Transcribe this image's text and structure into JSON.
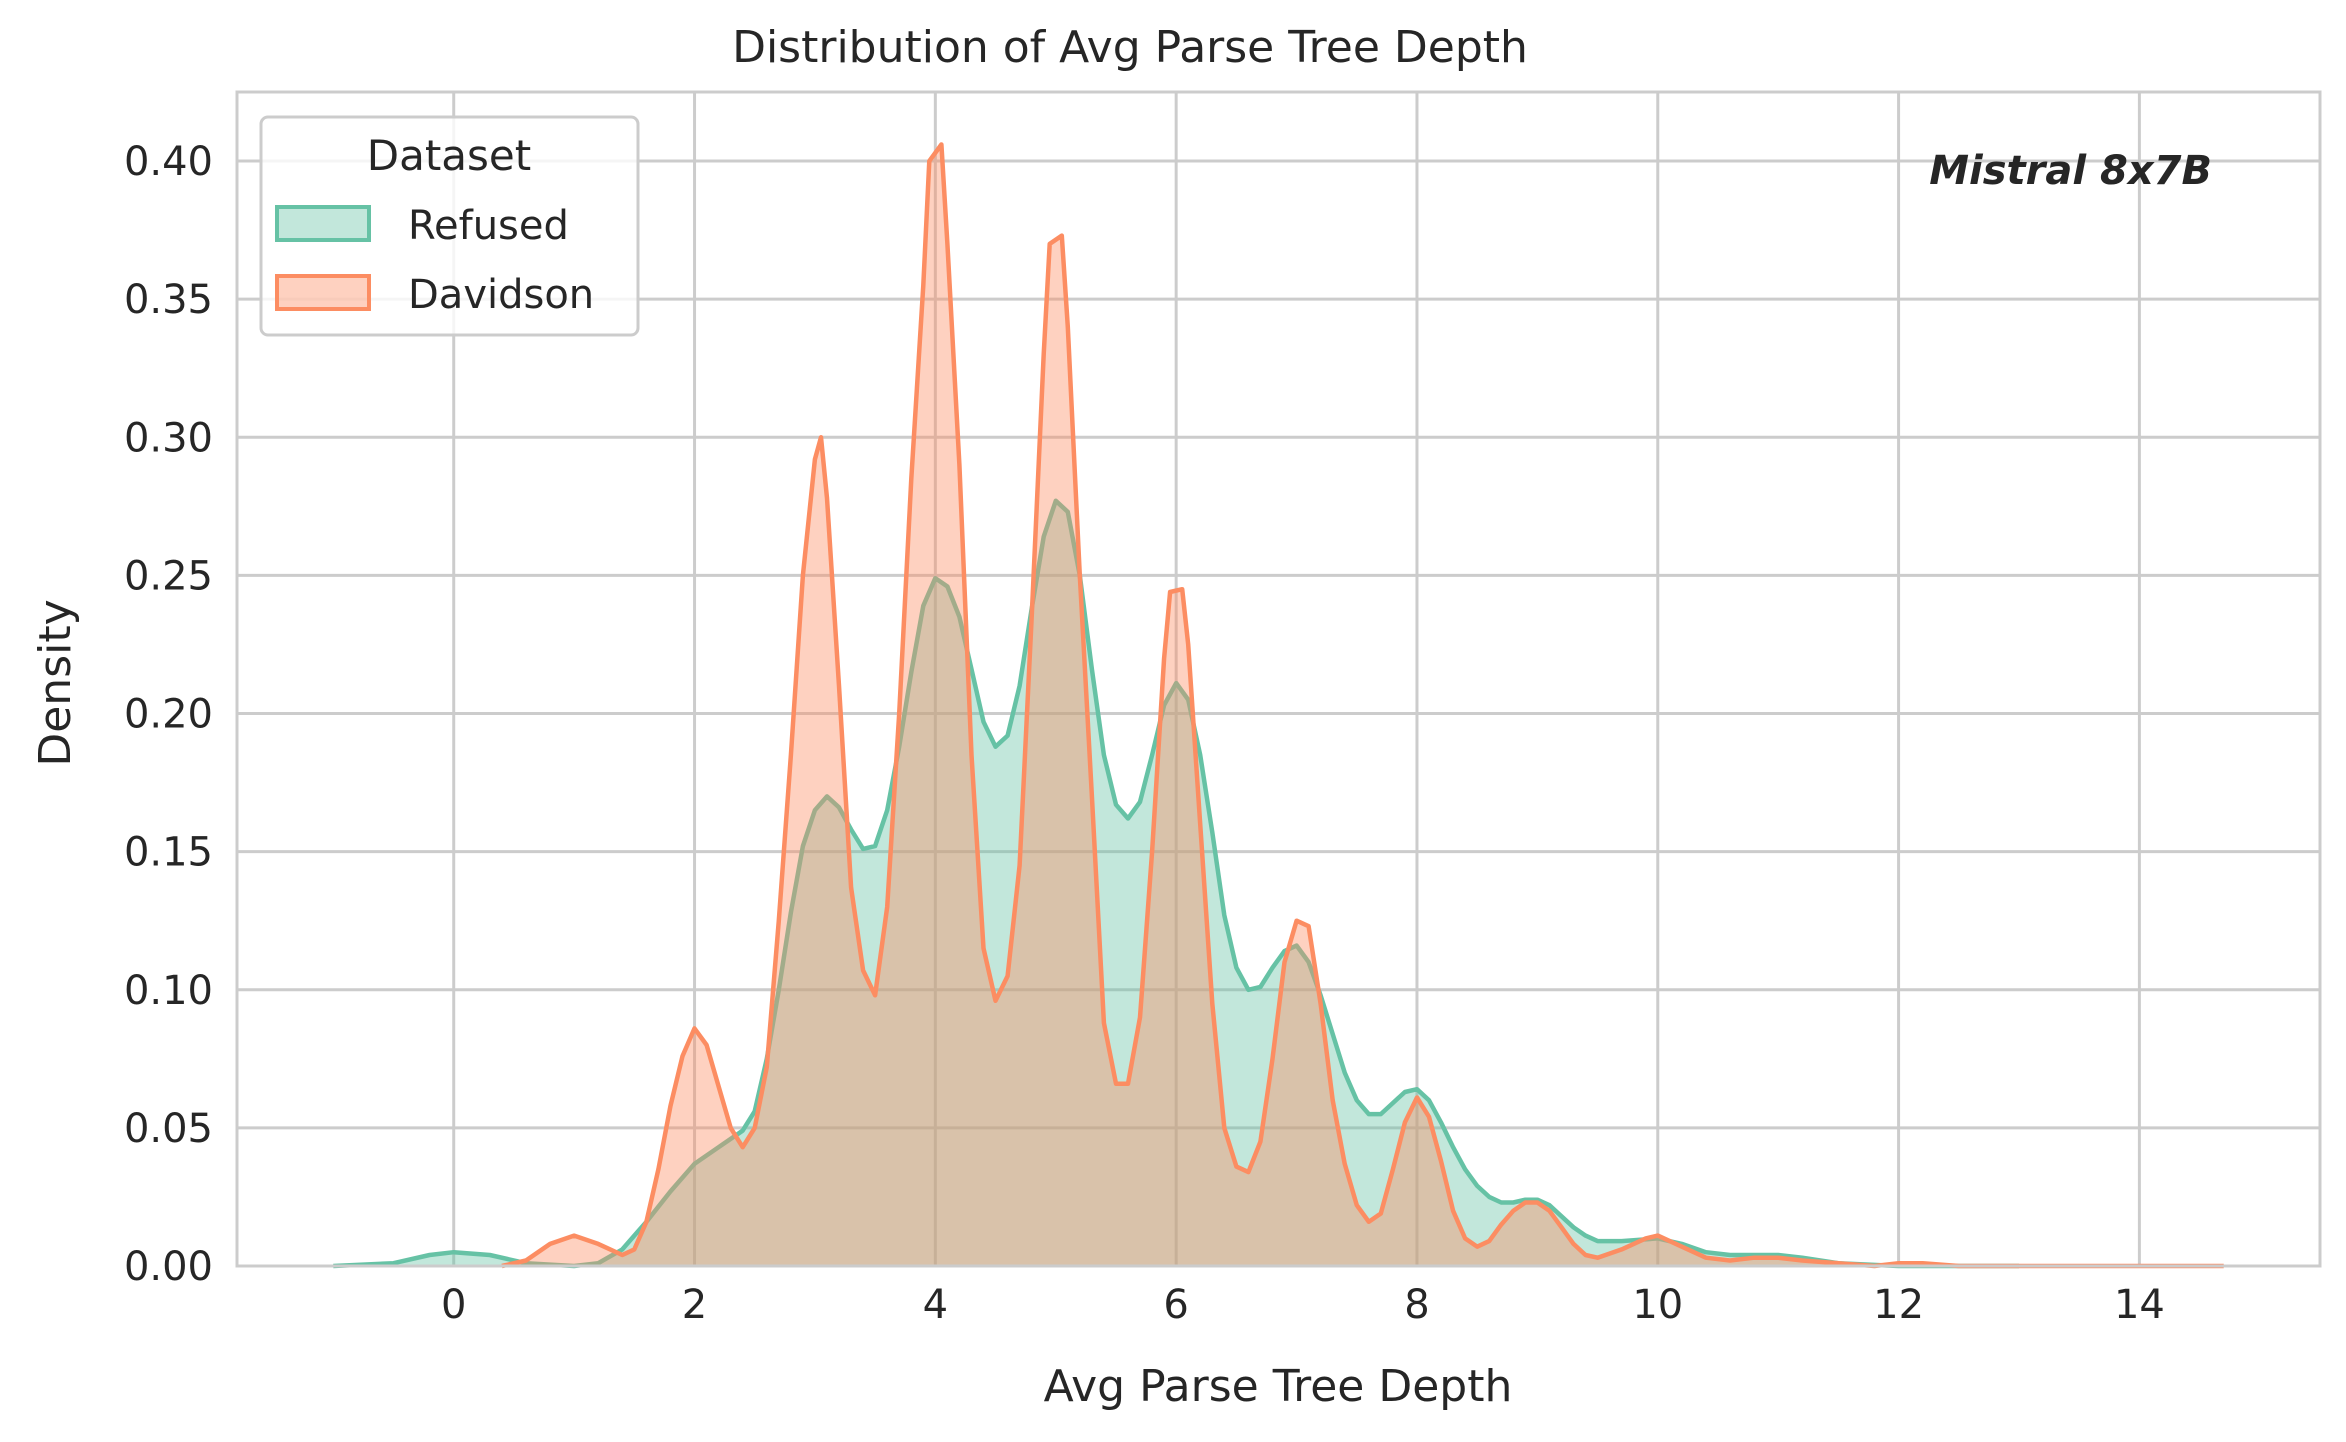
{
  "chart_data": {
    "type": "area",
    "title": "Distribution of Avg Parse Tree Depth",
    "xlabel": "Avg Parse Tree Depth",
    "ylabel": "Density",
    "xlim": [
      -1.8,
      15.5
    ],
    "ylim": [
      0,
      0.425
    ],
    "x_ticks": [
      0,
      2,
      4,
      6,
      8,
      10,
      12,
      14
    ],
    "y_ticks": [
      0.0,
      0.05,
      0.1,
      0.15,
      0.2,
      0.25,
      0.3,
      0.35,
      0.4
    ],
    "x_tick_labels": [
      "0",
      "2",
      "4",
      "6",
      "8",
      "10",
      "12",
      "14"
    ],
    "y_tick_labels": [
      "0.00",
      "0.05",
      "0.10",
      "0.15",
      "0.20",
      "0.25",
      "0.30",
      "0.35",
      "0.40"
    ],
    "grid": true,
    "legend": {
      "title": "Dataset",
      "placement": "top-left"
    },
    "annotation": "Mistral 8x7B",
    "series": [
      {
        "name": "Refused",
        "color": "#66c2a5",
        "points": [
          [
            -1.0,
            0.0
          ],
          [
            -0.5,
            0.001
          ],
          [
            -0.2,
            0.004
          ],
          [
            0.0,
            0.005
          ],
          [
            0.3,
            0.004
          ],
          [
            0.6,
            0.001
          ],
          [
            1.0,
            0.0
          ],
          [
            1.2,
            0.001
          ],
          [
            1.4,
            0.006
          ],
          [
            1.6,
            0.016
          ],
          [
            1.8,
            0.027
          ],
          [
            2.0,
            0.037
          ],
          [
            2.2,
            0.043
          ],
          [
            2.4,
            0.049
          ],
          [
            2.5,
            0.056
          ],
          [
            2.6,
            0.075
          ],
          [
            2.7,
            0.1
          ],
          [
            2.8,
            0.128
          ],
          [
            2.9,
            0.152
          ],
          [
            3.0,
            0.165
          ],
          [
            3.1,
            0.17
          ],
          [
            3.2,
            0.166
          ],
          [
            3.3,
            0.158
          ],
          [
            3.4,
            0.151
          ],
          [
            3.5,
            0.152
          ],
          [
            3.6,
            0.165
          ],
          [
            3.7,
            0.188
          ],
          [
            3.8,
            0.215
          ],
          [
            3.9,
            0.239
          ],
          [
            4.0,
            0.249
          ],
          [
            4.1,
            0.246
          ],
          [
            4.2,
            0.235
          ],
          [
            4.3,
            0.216
          ],
          [
            4.4,
            0.197
          ],
          [
            4.5,
            0.188
          ],
          [
            4.6,
            0.192
          ],
          [
            4.7,
            0.21
          ],
          [
            4.8,
            0.238
          ],
          [
            4.9,
            0.264
          ],
          [
            5.0,
            0.277
          ],
          [
            5.1,
            0.273
          ],
          [
            5.2,
            0.25
          ],
          [
            5.3,
            0.216
          ],
          [
            5.4,
            0.185
          ],
          [
            5.5,
            0.167
          ],
          [
            5.6,
            0.162
          ],
          [
            5.7,
            0.168
          ],
          [
            5.8,
            0.185
          ],
          [
            5.9,
            0.203
          ],
          [
            6.0,
            0.211
          ],
          [
            6.1,
            0.205
          ],
          [
            6.2,
            0.185
          ],
          [
            6.3,
            0.157
          ],
          [
            6.4,
            0.127
          ],
          [
            6.5,
            0.108
          ],
          [
            6.6,
            0.1
          ],
          [
            6.7,
            0.101
          ],
          [
            6.8,
            0.108
          ],
          [
            6.9,
            0.114
          ],
          [
            7.0,
            0.116
          ],
          [
            7.1,
            0.11
          ],
          [
            7.2,
            0.098
          ],
          [
            7.3,
            0.084
          ],
          [
            7.4,
            0.07
          ],
          [
            7.5,
            0.06
          ],
          [
            7.6,
            0.055
          ],
          [
            7.7,
            0.055
          ],
          [
            7.8,
            0.059
          ],
          [
            7.9,
            0.063
          ],
          [
            8.0,
            0.064
          ],
          [
            8.1,
            0.06
          ],
          [
            8.2,
            0.052
          ],
          [
            8.3,
            0.043
          ],
          [
            8.4,
            0.035
          ],
          [
            8.5,
            0.029
          ],
          [
            8.6,
            0.025
          ],
          [
            8.7,
            0.023
          ],
          [
            8.8,
            0.023
          ],
          [
            8.9,
            0.024
          ],
          [
            9.0,
            0.024
          ],
          [
            9.1,
            0.022
          ],
          [
            9.2,
            0.018
          ],
          [
            9.3,
            0.014
          ],
          [
            9.4,
            0.011
          ],
          [
            9.5,
            0.009
          ],
          [
            9.7,
            0.009
          ],
          [
            10.0,
            0.01
          ],
          [
            10.2,
            0.008
          ],
          [
            10.4,
            0.005
          ],
          [
            10.6,
            0.004
          ],
          [
            10.8,
            0.004
          ],
          [
            11.0,
            0.004
          ],
          [
            11.2,
            0.003
          ],
          [
            11.5,
            0.001
          ],
          [
            12.0,
            0.0
          ],
          [
            13.0,
            0.0
          ]
        ]
      },
      {
        "name": "Davidson",
        "color": "#fc8d62",
        "points": [
          [
            0.4,
            0.0
          ],
          [
            0.6,
            0.002
          ],
          [
            0.8,
            0.008
          ],
          [
            1.0,
            0.011
          ],
          [
            1.2,
            0.008
          ],
          [
            1.4,
            0.004
          ],
          [
            1.5,
            0.006
          ],
          [
            1.6,
            0.016
          ],
          [
            1.7,
            0.035
          ],
          [
            1.8,
            0.058
          ],
          [
            1.9,
            0.076
          ],
          [
            2.0,
            0.086
          ],
          [
            2.1,
            0.08
          ],
          [
            2.2,
            0.065
          ],
          [
            2.3,
            0.05
          ],
          [
            2.4,
            0.043
          ],
          [
            2.5,
            0.05
          ],
          [
            2.6,
            0.072
          ],
          [
            2.7,
            0.125
          ],
          [
            2.8,
            0.185
          ],
          [
            2.9,
            0.25
          ],
          [
            3.0,
            0.292
          ],
          [
            3.05,
            0.3
          ],
          [
            3.1,
            0.278
          ],
          [
            3.2,
            0.21
          ],
          [
            3.3,
            0.137
          ],
          [
            3.4,
            0.107
          ],
          [
            3.5,
            0.098
          ],
          [
            3.6,
            0.13
          ],
          [
            3.7,
            0.2
          ],
          [
            3.8,
            0.285
          ],
          [
            3.9,
            0.355
          ],
          [
            3.95,
            0.4
          ],
          [
            4.05,
            0.406
          ],
          [
            4.1,
            0.37
          ],
          [
            4.2,
            0.29
          ],
          [
            4.3,
            0.185
          ],
          [
            4.4,
            0.115
          ],
          [
            4.5,
            0.096
          ],
          [
            4.6,
            0.105
          ],
          [
            4.7,
            0.145
          ],
          [
            4.8,
            0.235
          ],
          [
            4.9,
            0.33
          ],
          [
            4.95,
            0.37
          ],
          [
            5.05,
            0.373
          ],
          [
            5.1,
            0.34
          ],
          [
            5.2,
            0.25
          ],
          [
            5.3,
            0.17
          ],
          [
            5.4,
            0.088
          ],
          [
            5.5,
            0.066
          ],
          [
            5.6,
            0.066
          ],
          [
            5.7,
            0.09
          ],
          [
            5.8,
            0.15
          ],
          [
            5.9,
            0.22
          ],
          [
            5.95,
            0.244
          ],
          [
            6.05,
            0.245
          ],
          [
            6.1,
            0.225
          ],
          [
            6.2,
            0.16
          ],
          [
            6.3,
            0.095
          ],
          [
            6.4,
            0.05
          ],
          [
            6.5,
            0.036
          ],
          [
            6.6,
            0.034
          ],
          [
            6.7,
            0.045
          ],
          [
            6.8,
            0.075
          ],
          [
            6.9,
            0.11
          ],
          [
            7.0,
            0.125
          ],
          [
            7.1,
            0.123
          ],
          [
            7.2,
            0.095
          ],
          [
            7.3,
            0.06
          ],
          [
            7.4,
            0.037
          ],
          [
            7.5,
            0.022
          ],
          [
            7.6,
            0.016
          ],
          [
            7.7,
            0.019
          ],
          [
            7.8,
            0.035
          ],
          [
            7.9,
            0.052
          ],
          [
            8.0,
            0.061
          ],
          [
            8.1,
            0.054
          ],
          [
            8.2,
            0.038
          ],
          [
            8.3,
            0.02
          ],
          [
            8.4,
            0.01
          ],
          [
            8.5,
            0.007
          ],
          [
            8.6,
            0.009
          ],
          [
            8.7,
            0.015
          ],
          [
            8.8,
            0.02
          ],
          [
            8.9,
            0.023
          ],
          [
            9.0,
            0.023
          ],
          [
            9.1,
            0.02
          ],
          [
            9.2,
            0.014
          ],
          [
            9.3,
            0.008
          ],
          [
            9.4,
            0.004
          ],
          [
            9.5,
            0.003
          ],
          [
            9.7,
            0.006
          ],
          [
            9.9,
            0.01
          ],
          [
            10.0,
            0.011
          ],
          [
            10.2,
            0.007
          ],
          [
            10.4,
            0.003
          ],
          [
            10.6,
            0.002
          ],
          [
            10.8,
            0.003
          ],
          [
            11.0,
            0.003
          ],
          [
            11.2,
            0.002
          ],
          [
            11.5,
            0.001
          ],
          [
            11.8,
            0.0
          ],
          [
            12.0,
            0.001
          ],
          [
            12.2,
            0.001
          ],
          [
            12.5,
            0.0
          ],
          [
            13.5,
            0.0
          ],
          [
            14.0,
            0.0
          ],
          [
            14.7,
            0.0
          ]
        ]
      }
    ]
  }
}
